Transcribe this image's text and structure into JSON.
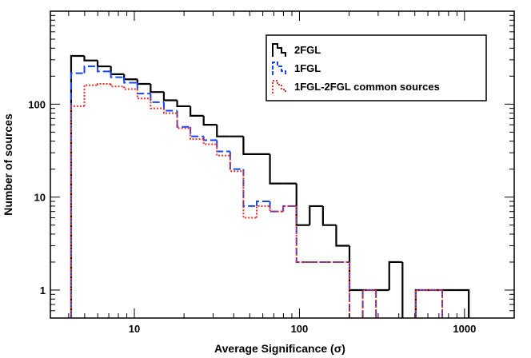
{
  "chart_data": {
    "type": "line",
    "title": "",
    "xlabel": "Average Significance (σ)",
    "ylabel": "Number of sources",
    "x_scale": "log",
    "y_scale": "log",
    "xlim": [
      3.1,
      2000
    ],
    "ylim": [
      0.5,
      1000
    ],
    "grid": false,
    "legend_position": "top-right",
    "x_ticks": [
      {
        "value": 10,
        "label": "10"
      },
      {
        "value": 100,
        "label": "100"
      },
      {
        "value": 1000,
        "label": "1000"
      }
    ],
    "y_ticks": [
      {
        "value": 1,
        "label": "1"
      },
      {
        "value": 10,
        "label": "10"
      },
      {
        "value": 100,
        "label": "100"
      }
    ],
    "bin_edges": [
      4.14,
      4.98,
      5.99,
      7.21,
      8.67,
      10.43,
      12.55,
      15.1,
      18.17,
      21.86,
      26.3,
      31.64,
      38.07,
      45.8,
      55.1,
      66.29,
      79.75,
      95.95,
      115.43,
      138.87,
      167.07,
      201.0,
      241.82,
      290.93,
      350.01,
      421.09,
      506.61,
      609.49,
      733.26,
      882.17,
      1061.33
    ],
    "series": [
      {
        "name": "2FGL",
        "color": "#000000",
        "dash": "solid",
        "values": [
          330,
          295,
          255,
          210,
          185,
          165,
          135,
          110,
          95,
          75,
          60,
          45,
          45,
          29,
          29,
          14,
          14,
          5,
          8,
          5,
          3,
          1,
          1,
          1,
          2,
          0,
          1,
          1,
          1,
          1
        ]
      },
      {
        "name": "1FGL",
        "color": "#1a46e8",
        "dash": "dashed",
        "values": [
          215,
          255,
          225,
          195,
          170,
          130,
          105,
          85,
          57,
          45,
          41,
          31,
          20,
          8,
          9,
          7,
          8,
          2,
          2,
          2,
          2,
          0,
          1,
          0,
          0,
          0,
          1,
          1,
          0,
          0
        ]
      },
      {
        "name": "1FGL-2FGL common sources",
        "color": "#e8302a",
        "dash": "dotted",
        "values": [
          95,
          160,
          165,
          155,
          145,
          115,
          90,
          80,
          55,
          42,
          37,
          28,
          19,
          6,
          8,
          7,
          8,
          2,
          2,
          2,
          2,
          0,
          1,
          0,
          0,
          0,
          1,
          1,
          0,
          0
        ]
      }
    ]
  }
}
